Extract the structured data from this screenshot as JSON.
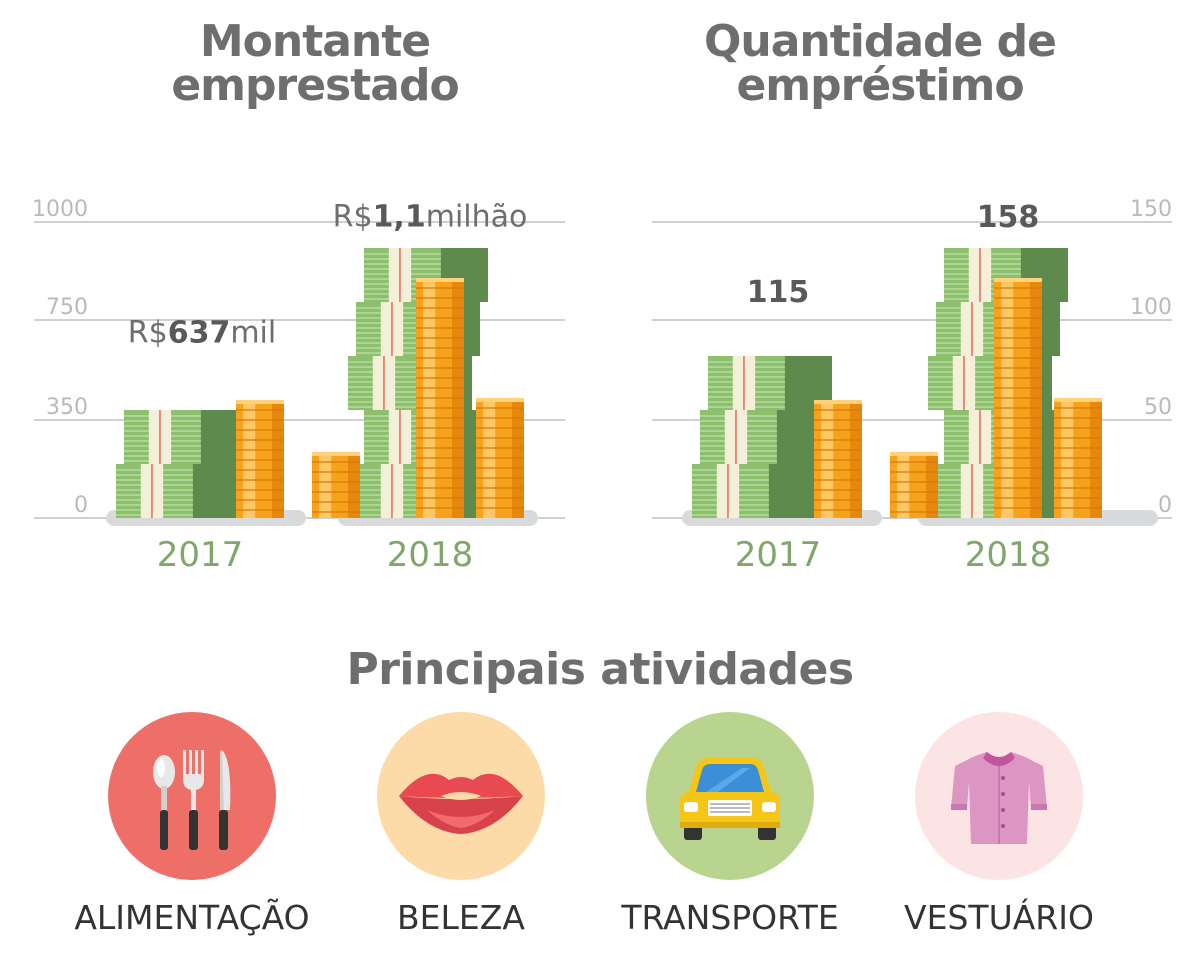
{
  "chart_data": [
    {
      "type": "bar",
      "title": [
        "Montante",
        "emprestado"
      ],
      "categories": [
        "2017",
        "2018"
      ],
      "values": [
        637,
        1100
      ],
      "value_labels": [
        {
          "prefix": "R$",
          "number": "637",
          "suffix": "mil"
        },
        {
          "prefix": "R$",
          "number": "1,1",
          "suffix": "milhão"
        }
      ],
      "yticks": [
        "0",
        "350",
        "750",
        "1000"
      ],
      "axis_side": "left",
      "grid": true
    },
    {
      "type": "bar",
      "title": [
        "Quantidade de",
        "empréstimo"
      ],
      "categories": [
        "2017",
        "2018"
      ],
      "values": [
        115,
        158
      ],
      "value_labels": [
        {
          "prefix": "",
          "number": "115",
          "suffix": ""
        },
        {
          "prefix": "",
          "number": "158",
          "suffix": ""
        }
      ],
      "yticks": [
        "0",
        "50",
        "100",
        "150"
      ],
      "axis_side": "right",
      "grid": true
    }
  ],
  "activities": {
    "title": "Principais atividades",
    "items": [
      {
        "label": "ALIMENTAÇÃO",
        "icon": "cutlery-icon",
        "color": "#ee6f67"
      },
      {
        "label": "BELEZA",
        "icon": "lips-icon",
        "color": "#fddba8"
      },
      {
        "label": "TRANSPORTE",
        "icon": "car-icon",
        "color": "#b9d48f"
      },
      {
        "label": "VESTUÁRIO",
        "icon": "shirt-icon",
        "color": "#fde4e4"
      }
    ]
  },
  "colors": {
    "title": "#6d6e70",
    "year": "#7fa76a",
    "tick": "#b9babc",
    "money_light": "#8cc06c",
    "money_dark": "#5e8a4e",
    "coin": "#f7a21b"
  }
}
